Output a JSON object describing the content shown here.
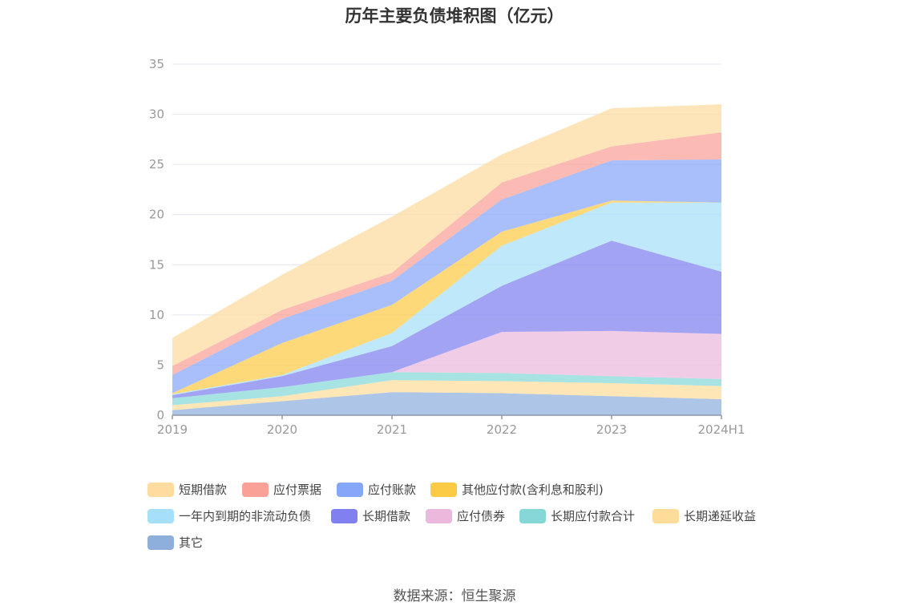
{
  "chart_data": {
    "type": "area",
    "stacked": true,
    "title": "历年主要负债堆积图（亿元）",
    "categories": [
      "2019",
      "2020",
      "2021",
      "2022",
      "2023",
      "2024H1"
    ],
    "ylim": [
      0,
      35
    ],
    "yticks": [
      "0",
      "5",
      "10",
      "15",
      "20",
      "25",
      "30",
      "35"
    ],
    "grid": true,
    "legend_position": "bottom",
    "series": [
      {
        "name": "其它",
        "color": "#8eaedc",
        "values": [
          0.5,
          1.4,
          2.3,
          2.2,
          1.9,
          1.6
        ]
      },
      {
        "name": "长期递延收益",
        "color": "#fedc9a",
        "values": [
          0.5,
          0.5,
          1.2,
          1.2,
          1.3,
          1.3
        ]
      },
      {
        "name": "长期应付款合计",
        "color": "#86d8d8",
        "values": [
          0.7,
          0.9,
          0.8,
          0.8,
          0.7,
          0.7
        ]
      },
      {
        "name": "应付债券",
        "color": "#ecb8dc",
        "values": [
          0,
          0,
          0,
          4.1,
          4.5,
          4.5
        ]
      },
      {
        "name": "长期借款",
        "color": "#8080f0",
        "values": [
          0.3,
          1.1,
          2.6,
          4.6,
          9.0,
          6.2
        ]
      },
      {
        "name": "一年内到期的非流动负债",
        "color": "#a6dffa",
        "values": [
          0.1,
          0.1,
          1.3,
          4.0,
          3.8,
          6.9
        ]
      },
      {
        "name": "其他应付款(含利息和股利)",
        "color": "#fccb45",
        "values": [
          0.1,
          3.2,
          2.8,
          1.4,
          0.2,
          0.0
        ]
      },
      {
        "name": "应付账款",
        "color": "#86a6fa",
        "values": [
          1.8,
          2.4,
          2.4,
          3.2,
          4.0,
          4.3
        ]
      },
      {
        "name": "应付票据",
        "color": "#faa096",
        "values": [
          0.9,
          0.9,
          0.8,
          1.7,
          1.4,
          2.7
        ]
      },
      {
        "name": "短期借款",
        "color": "#fedb9e",
        "values": [
          2.8,
          3.5,
          5.6,
          2.8,
          3.8,
          2.8
        ]
      }
    ]
  },
  "legend": [
    {
      "label": "短期借款",
      "color": "#fedb9e"
    },
    {
      "label": "应付票据",
      "color": "#faa096"
    },
    {
      "label": "应付账款",
      "color": "#86a6fa"
    },
    {
      "label": "其他应付款(含利息和股利)",
      "color": "#fccb45"
    },
    {
      "label": "一年内到期的非流动负债",
      "color": "#a6dffa"
    },
    {
      "label": "长期借款",
      "color": "#8080f0"
    },
    {
      "label": "应付债券",
      "color": "#ecb8dc"
    },
    {
      "label": "长期应付款合计",
      "color": "#86d8d8"
    },
    {
      "label": "长期递延收益",
      "color": "#fedc9a"
    },
    {
      "label": "其它",
      "color": "#8eaedc"
    }
  ],
  "source_note": "数据来源：恒生聚源"
}
